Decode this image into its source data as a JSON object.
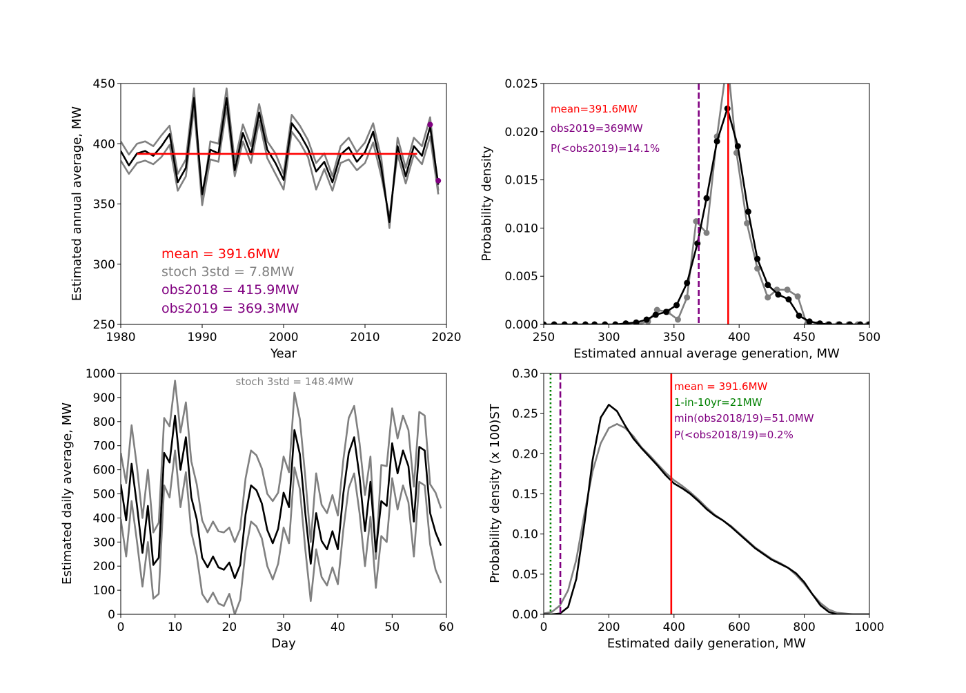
{
  "chart_data": [
    {
      "type": "line",
      "panel": "top-left",
      "xlabel": "Year",
      "ylabel": "Estimated annual average, MW",
      "xlim": [
        1980,
        2020
      ],
      "ylim": [
        250,
        450
      ],
      "xticks": [
        1980,
        1990,
        2000,
        2010,
        2020
      ],
      "yticks": [
        250,
        300,
        350,
        400,
        450
      ],
      "x": [
        1980,
        1981,
        1982,
        1983,
        1984,
        1985,
        1986,
        1987,
        1988,
        1989,
        1990,
        1991,
        1992,
        1993,
        1994,
        1995,
        1996,
        1997,
        1998,
        1999,
        2000,
        2001,
        2002,
        2003,
        2004,
        2005,
        2006,
        2007,
        2008,
        2009,
        2010,
        2011,
        2012,
        2013,
        2014,
        2015,
        2016,
        2017,
        2018,
        2019
      ],
      "series": [
        {
          "role": "upper",
          "color": "#808080",
          "values": [
            402,
            391,
            400,
            402,
            398,
            407,
            415,
            375,
            387,
            446,
            350,
            402,
            400,
            446,
            385,
            416,
            398,
            433,
            402,
            392,
            375,
            424,
            415,
            403,
            384,
            392,
            373,
            398,
            405,
            393,
            401,
            417,
            388,
            330,
            405,
            380,
            405,
            398,
            422,
            361
          ]
        },
        {
          "role": "central",
          "color": "#000000",
          "values": [
            394,
            382,
            392,
            394,
            390,
            398,
            408,
            368,
            380,
            438,
            358,
            395,
            392,
            438,
            378,
            409,
            391,
            426,
            395,
            384,
            370,
            417,
            408,
            396,
            377,
            385,
            368,
            391,
            397,
            385,
            393,
            410,
            380,
            335,
            398,
            373,
            398,
            390,
            414,
            366
          ]
        },
        {
          "role": "lower",
          "color": "#808080",
          "values": [
            386,
            375,
            384,
            386,
            383,
            389,
            399,
            361,
            373,
            430,
            349,
            387,
            385,
            430,
            373,
            402,
            384,
            419,
            388,
            375,
            362,
            410,
            401,
            389,
            362,
            379,
            361,
            384,
            387,
            378,
            384,
            401,
            373,
            339,
            391,
            367,
            391,
            383,
            406,
            358
          ]
        }
      ],
      "mean_line": {
        "value": 391.6,
        "color": "#ff0000"
      },
      "observations": [
        {
          "x": 2018,
          "y": 415.9,
          "color": "#800080"
        },
        {
          "x": 2019,
          "y": 369.3,
          "color": "#800080"
        }
      ],
      "annotations": [
        {
          "text": "mean = 391.6MW",
          "color": "#ff0000"
        },
        {
          "text": "stoch 3std = 7.8MW",
          "color": "#808080"
        },
        {
          "text": "obs2018 = 415.9MW",
          "color": "#800080"
        },
        {
          "text": "obs2019 = 369.3MW",
          "color": "#800080"
        }
      ]
    },
    {
      "type": "line",
      "panel": "top-right",
      "xlabel": "Estimated annual average generation, MW",
      "ylabel": "Probability density",
      "xlim": [
        250,
        500
      ],
      "ylim": [
        0,
        0.025
      ],
      "xticks": [
        250,
        300,
        350,
        400,
        450,
        500
      ],
      "yticks": [
        "0.000",
        "0.005",
        "0.010",
        "0.015",
        "0.020",
        "0.025"
      ],
      "series": [
        {
          "role": "grey",
          "color": "#808080",
          "markers": true,
          "x": [
            322,
            330,
            337,
            345,
            353,
            360,
            367,
            375,
            383,
            391,
            398,
            406,
            414,
            422,
            429,
            437,
            445,
            452,
            460,
            468,
            476,
            484,
            491,
            499
          ],
          "y": [
            0,
            0.0003,
            0.0015,
            0.0013,
            0.0005,
            0.0028,
            0.0107,
            0.0095,
            0.0195,
            0.0275,
            0.0178,
            0.0105,
            0.0058,
            0.0028,
            0.0036,
            0.0036,
            0.0029,
            0,
            0,
            0,
            0,
            0,
            0,
            0
          ]
        },
        {
          "role": "black",
          "color": "#000000",
          "markers": true,
          "x": [
            250,
            258,
            266,
            274,
            282,
            289,
            297,
            305,
            313,
            321,
            329,
            336,
            344,
            352,
            360,
            368,
            375,
            383,
            391,
            399,
            407,
            414,
            422,
            430,
            438,
            446,
            454,
            462,
            469,
            477,
            485,
            493,
            500
          ],
          "y": [
            0,
            0,
            0,
            0,
            0,
            0,
            0,
            0,
            0.0001,
            0.0002,
            0.0005,
            0.001,
            0.0013,
            0.002,
            0.0043,
            0.0084,
            0.0131,
            0.019,
            0.0224,
            0.0185,
            0.0117,
            0.0068,
            0.0041,
            0.0031,
            0.0026,
            0.0009,
            0.0003,
            0.0001,
            0,
            0,
            0,
            0,
            0
          ]
        }
      ],
      "vlines": [
        {
          "x": 391.6,
          "color": "#ff0000",
          "style": "solid"
        },
        {
          "x": 369,
          "color": "#800080",
          "style": "dashed"
        }
      ],
      "annotations": [
        {
          "text": "mean=391.6MW",
          "color": "#ff0000"
        },
        {
          "text": "obs2019=369MW",
          "color": "#800080"
        },
        {
          "text": "P(<obs2019)=14.1%",
          "color": "#800080"
        }
      ]
    },
    {
      "type": "line",
      "panel": "bottom-left",
      "xlabel": "Day",
      "ylabel": "Estimated daily average, MW",
      "xlim": [
        0,
        60
      ],
      "ylim": [
        0,
        1000
      ],
      "xticks": [
        0,
        10,
        20,
        30,
        40,
        50,
        60
      ],
      "yticks": [
        0,
        100,
        200,
        300,
        400,
        500,
        600,
        700,
        800,
        900,
        1000
      ],
      "x": [
        0,
        1,
        2,
        3,
        4,
        5,
        6,
        7,
        8,
        9,
        10,
        11,
        12,
        13,
        14,
        15,
        16,
        17,
        18,
        19,
        20,
        21,
        22,
        23,
        24,
        25,
        26,
        27,
        28,
        29,
        30,
        31,
        32,
        33,
        34,
        35,
        36,
        37,
        38,
        39,
        40,
        41,
        42,
        43,
        44,
        45,
        46,
        47,
        48,
        49,
        50,
        51,
        52,
        53,
        54,
        55,
        56,
        57,
        58,
        59
      ],
      "series": [
        {
          "role": "upper",
          "color": "#808080",
          "values": [
            670,
            545,
            785,
            610,
            400,
            600,
            340,
            380,
            815,
            780,
            970,
            755,
            880,
            635,
            540,
            390,
            340,
            385,
            345,
            340,
            360,
            300,
            355,
            565,
            680,
            660,
            605,
            500,
            470,
            505,
            655,
            590,
            920,
            810,
            570,
            300,
            585,
            455,
            420,
            495,
            410,
            640,
            815,
            865,
            710,
            495,
            655,
            230,
            620,
            615,
            855,
            730,
            825,
            765,
            530,
            840,
            825,
            540,
            505,
            440
          ]
        },
        {
          "role": "central",
          "color": "#000000",
          "values": [
            540,
            390,
            625,
            450,
            255,
            450,
            205,
            235,
            670,
            630,
            825,
            600,
            735,
            485,
            395,
            235,
            195,
            240,
            195,
            185,
            215,
            150,
            205,
            415,
            535,
            515,
            460,
            350,
            295,
            355,
            505,
            445,
            765,
            665,
            420,
            210,
            420,
            305,
            270,
            345,
            270,
            500,
            670,
            735,
            570,
            345,
            550,
            260,
            470,
            450,
            710,
            585,
            680,
            615,
            385,
            695,
            680,
            420,
            340,
            285
          ]
        },
        {
          "role": "lower",
          "color": "#808080",
          "values": [
            395,
            240,
            470,
            300,
            115,
            300,
            65,
            85,
            535,
            485,
            680,
            445,
            590,
            340,
            245,
            85,
            50,
            90,
            45,
            35,
            85,
            0,
            60,
            265,
            385,
            365,
            315,
            200,
            145,
            210,
            360,
            295,
            610,
            520,
            270,
            55,
            270,
            155,
            120,
            195,
            125,
            350,
            525,
            585,
            420,
            200,
            405,
            110,
            325,
            300,
            565,
            435,
            535,
            465,
            240,
            550,
            535,
            290,
            185,
            130
          ]
        }
      ],
      "annotations": [
        {
          "text": "stoch 3std = 148.4MW",
          "color": "#808080"
        }
      ]
    },
    {
      "type": "line",
      "panel": "bottom-right",
      "xlabel": "Estimated daily generation, MW",
      "ylabel": "Probability density (x 100)ST",
      "xlim": [
        0,
        1000
      ],
      "ylim": [
        0,
        0.3
      ],
      "xticks": [
        0,
        200,
        400,
        600,
        800,
        1000
      ],
      "yticks": [
        "0.00",
        "0.05",
        "0.10",
        "0.15",
        "0.20",
        "0.25",
        "0.30"
      ],
      "series": [
        {
          "role": "grey",
          "color": "#808080",
          "x": [
            0,
            25,
            50,
            75,
            100,
            125,
            150,
            175,
            200,
            225,
            250,
            275,
            300,
            325,
            350,
            375,
            400,
            425,
            450,
            475,
            500,
            525,
            550,
            575,
            600,
            625,
            650,
            675,
            700,
            725,
            750,
            775,
            800,
            825,
            850,
            875,
            900,
            925,
            950,
            975,
            1000
          ],
          "y": [
            0.001,
            0.003,
            0.011,
            0.03,
            0.068,
            0.125,
            0.178,
            0.213,
            0.232,
            0.237,
            0.232,
            0.222,
            0.208,
            0.198,
            0.187,
            0.176,
            0.167,
            0.16,
            0.152,
            0.143,
            0.133,
            0.124,
            0.117,
            0.11,
            0.101,
            0.092,
            0.083,
            0.076,
            0.069,
            0.064,
            0.058,
            0.049,
            0.038,
            0.025,
            0.014,
            0.006,
            0.002,
            0.001,
            0,
            0,
            0
          ]
        },
        {
          "role": "black",
          "color": "#000000",
          "x": [
            0,
            25,
            50,
            75,
            100,
            125,
            150,
            175,
            200,
            225,
            250,
            275,
            300,
            325,
            350,
            375,
            400,
            425,
            450,
            475,
            500,
            525,
            550,
            575,
            600,
            625,
            650,
            675,
            700,
            725,
            750,
            775,
            800,
            825,
            850,
            875,
            900,
            925,
            950,
            975,
            1000
          ],
          "y": [
            0,
            0,
            0.001,
            0.009,
            0.044,
            0.113,
            0.192,
            0.245,
            0.261,
            0.253,
            0.235,
            0.219,
            0.207,
            0.196,
            0.185,
            0.173,
            0.163,
            0.157,
            0.15,
            0.141,
            0.131,
            0.123,
            0.117,
            0.109,
            0.1,
            0.091,
            0.082,
            0.075,
            0.068,
            0.063,
            0.058,
            0.051,
            0.04,
            0.025,
            0.011,
            0.003,
            0,
            0,
            0,
            0,
            0
          ]
        }
      ],
      "vlines": [
        {
          "x": 391.6,
          "color": "#ff0000",
          "style": "solid"
        },
        {
          "x": 21,
          "color": "#008000",
          "style": "dotted"
        },
        {
          "x": 51,
          "color": "#800080",
          "style": "dashed"
        }
      ],
      "annotations": [
        {
          "text": "mean = 391.6MW",
          "color": "#ff0000"
        },
        {
          "text": "1-in-10yr=21MW",
          "color": "#008000"
        },
        {
          "text": "min(obs2018/19)=51.0MW",
          "color": "#800080"
        },
        {
          "text": "P(<obs2018/19)=0.2%",
          "color": "#800080"
        }
      ]
    }
  ]
}
